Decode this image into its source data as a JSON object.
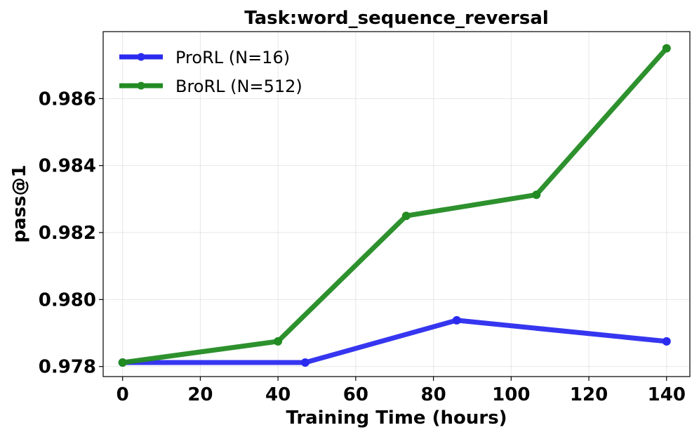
{
  "chart_data": {
    "type": "line",
    "title": "Task:word_sequence_reversal",
    "xlabel": "Training Time (hours)",
    "ylabel": "pass@1",
    "xlim": [
      -5,
      146
    ],
    "ylim": [
      0.9777,
      0.988
    ],
    "xticks": [
      0,
      20,
      40,
      60,
      80,
      100,
      120,
      140
    ],
    "xtick_labels": [
      "0",
      "20",
      "40",
      "60",
      "80",
      "100",
      "120",
      "140"
    ],
    "yticks": [
      0.978,
      0.98,
      0.982,
      0.984,
      0.986
    ],
    "ytick_labels": [
      "0.978",
      "0.980",
      "0.982",
      "0.984",
      "0.986"
    ],
    "grid": true,
    "legend_position": "top-left",
    "series": [
      {
        "name": "ProRL (N=16)",
        "color": "#2b2bef",
        "x": [
          0,
          47,
          86,
          140
        ],
        "y": [
          0.97812,
          0.97812,
          0.97938,
          0.97875
        ]
      },
      {
        "name": "BroRL (N=512)",
        "color": "#228b22",
        "x": [
          0,
          40,
          73,
          106.5,
          140
        ],
        "y": [
          0.97812,
          0.97875,
          0.9825,
          0.98313,
          0.9875
        ]
      }
    ]
  }
}
